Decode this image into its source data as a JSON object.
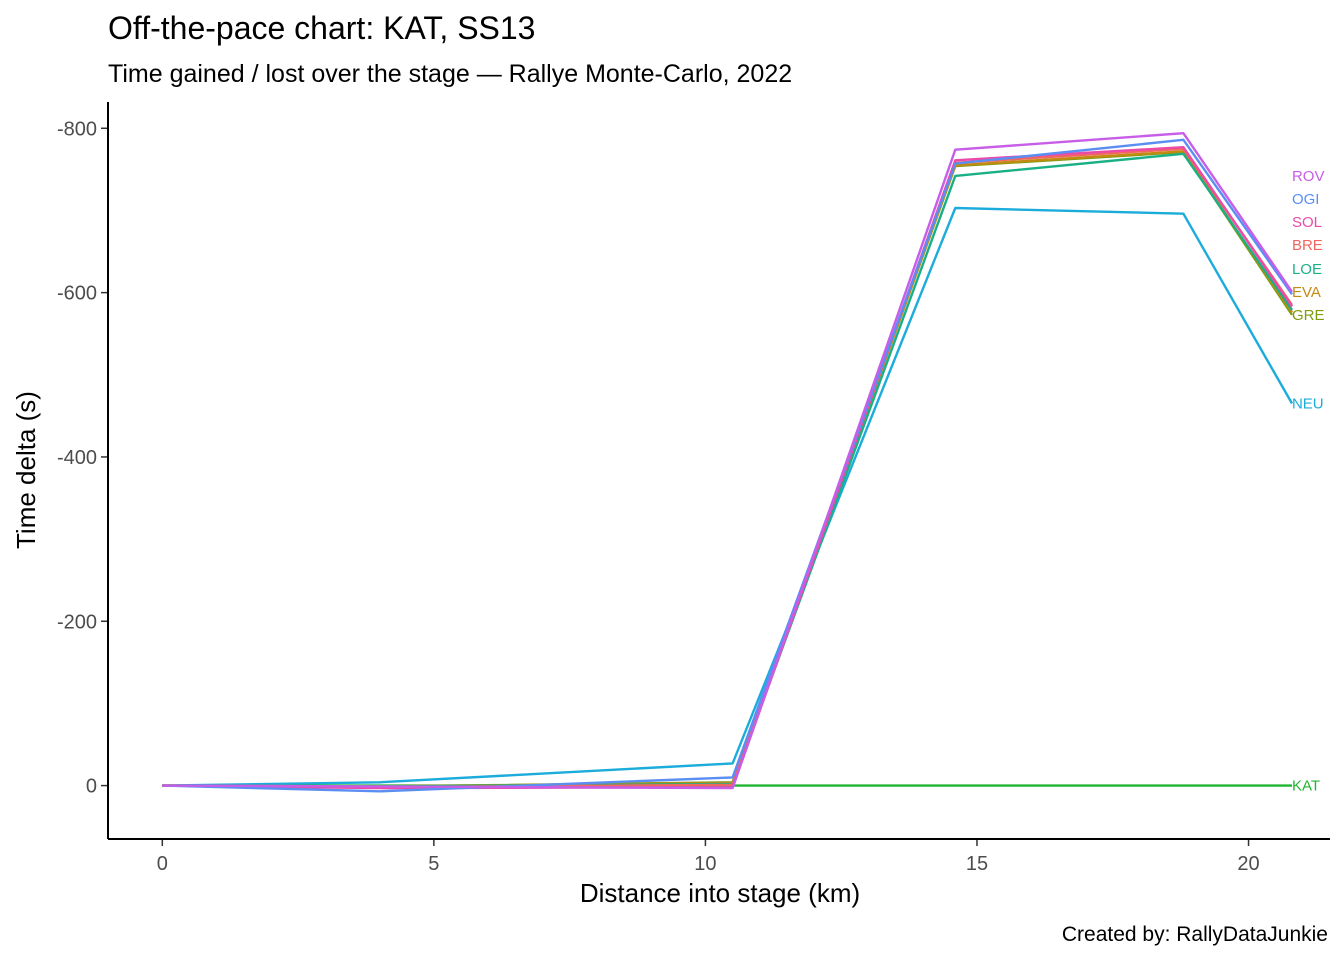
{
  "chart_data": {
    "type": "line",
    "title": "Off-the-pace chart: KAT, SS13",
    "subtitle": "Time gained / lost over the stage — Rallye Monte-Carlo, 2022",
    "xlabel": "Distance into stage (km)",
    "ylabel": "Time delta (s)",
    "caption": "Created by: RallyDataJunkie",
    "xlim": [
      -1,
      21.5
    ],
    "ylim": [
      65,
      -832
    ],
    "y_reversed": true,
    "x_ticks": [
      0,
      5,
      10,
      15,
      20
    ],
    "y_ticks": [
      0,
      -200,
      -400,
      -600,
      -800
    ],
    "y_tick_labels": [
      "0",
      "-200",
      "-400",
      "-600",
      "-800"
    ],
    "x_tick_labels": [
      "0",
      "5",
      "10",
      "15",
      "20"
    ],
    "grid": false,
    "legend": "none (labels at line ends)",
    "series": [
      {
        "name": "KAT",
        "color": "#1fb530",
        "x": [
          0,
          4.0,
          10.5,
          14.6,
          18.8,
          20.8
        ],
        "y": [
          0,
          0,
          0,
          0,
          0,
          0
        ]
      },
      {
        "name": "NEU",
        "color": "#1bacdb",
        "x": [
          0,
          4.0,
          10.5,
          14.6,
          18.8,
          20.8
        ],
        "y": [
          0,
          -4,
          -27,
          -703,
          -696,
          -465
        ]
      },
      {
        "name": "GRE",
        "color": "#7f9b10",
        "x": [
          0,
          4.0,
          10.5,
          14.6,
          18.8,
          20.8
        ],
        "y": [
          0,
          1,
          -4,
          -754,
          -771,
          -573
        ]
      },
      {
        "name": "EVA",
        "color": "#c38a12",
        "x": [
          0,
          4.0,
          10.5,
          14.6,
          18.8,
          20.8
        ],
        "y": [
          0,
          1,
          -3,
          -755,
          -772,
          -576
        ]
      },
      {
        "name": "LOE",
        "color": "#19b086",
        "x": [
          0,
          4.0,
          10.5,
          14.6,
          18.8,
          20.8
        ],
        "y": [
          0,
          1,
          -2,
          -742,
          -769,
          -579
        ]
      },
      {
        "name": "BRE",
        "color": "#f0675f",
        "x": [
          0,
          4.0,
          10.5,
          14.6,
          18.8,
          20.8
        ],
        "y": [
          0,
          2,
          -1,
          -758,
          -775,
          -585
        ]
      },
      {
        "name": "SOL",
        "color": "#ec4aa8",
        "x": [
          0,
          4.0,
          10.5,
          14.6,
          18.8,
          20.8
        ],
        "y": [
          0,
          3,
          2,
          -761,
          -777,
          -583
        ]
      },
      {
        "name": "OGI",
        "color": "#5a8ef3",
        "x": [
          0,
          4.0,
          10.5,
          14.6,
          18.8,
          20.8
        ],
        "y": [
          0,
          7,
          -10,
          -757,
          -786,
          -598
        ]
      },
      {
        "name": "ROV",
        "color": "#c85de8",
        "x": [
          0,
          4.0,
          10.5,
          14.6,
          18.8,
          20.8
        ],
        "y": [
          0,
          1,
          3,
          -774,
          -794,
          -601
        ]
      }
    ],
    "end_labels": [
      {
        "name": "ROV",
        "color": "#c85de8",
        "y": -742
      },
      {
        "name": "OGI",
        "color": "#5a8ef3",
        "y": -714
      },
      {
        "name": "SOL",
        "color": "#ec4aa8",
        "y": -686
      },
      {
        "name": "BRE",
        "color": "#f0675f",
        "y": -658
      },
      {
        "name": "LOE",
        "color": "#19b086",
        "y": -629
      },
      {
        "name": "EVA",
        "color": "#c38a12",
        "y": -601
      },
      {
        "name": "GRE",
        "color": "#7f9b10",
        "y": -573
      },
      {
        "name": "NEU",
        "color": "#1bacdb",
        "y": -465
      },
      {
        "name": "KAT",
        "color": "#1fb530",
        "y": 0
      }
    ]
  }
}
